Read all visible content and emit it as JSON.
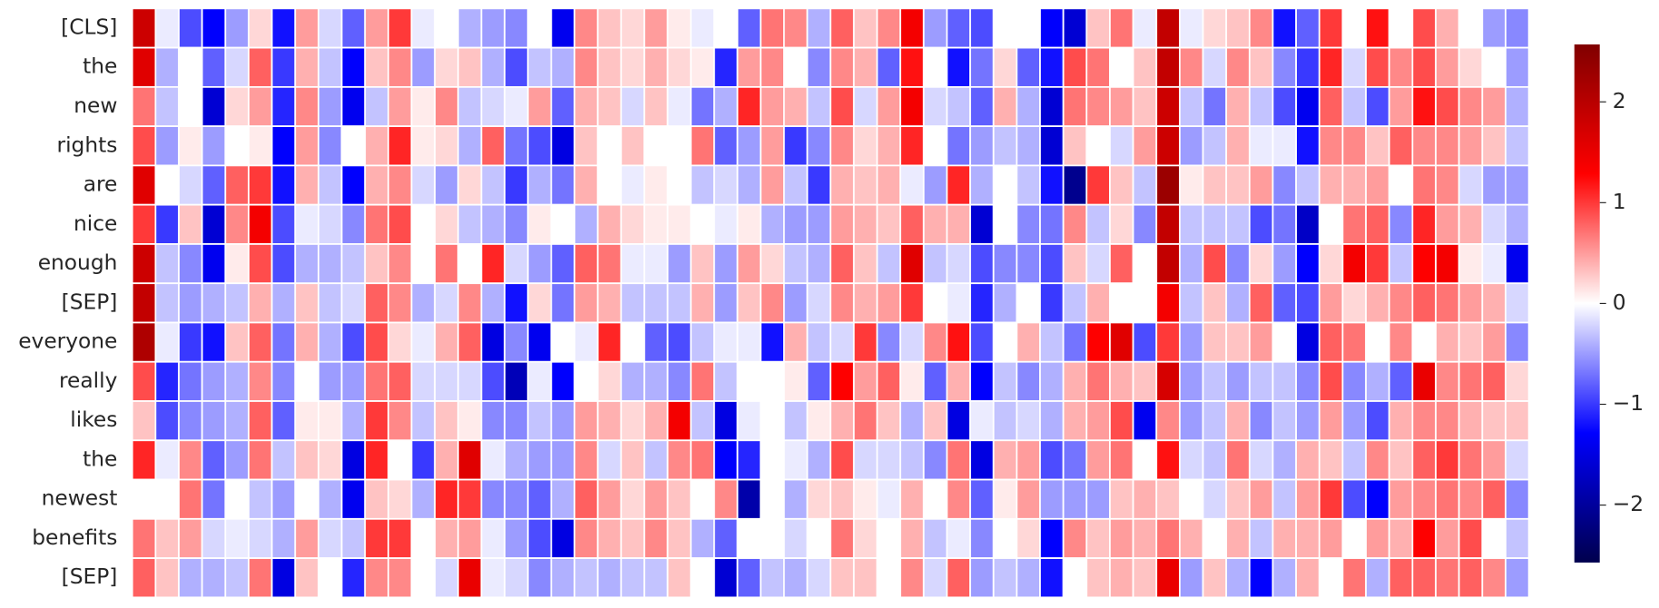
{
  "chart_data": {
    "type": "heatmap",
    "colormap": "seismic",
    "categories": [
      "[CLS]",
      "the",
      "new",
      "rights",
      "are",
      "nice",
      "enough",
      "[SEP]",
      "everyone",
      "really",
      "likes",
      "the",
      "newest",
      "benefits",
      "[SEP]"
    ],
    "values": [
      [
        1.8,
        -0.1,
        -0.9,
        -1.3,
        -0.5,
        0.2,
        -1.2,
        0.5,
        -0.2,
        -0.8,
        0.5,
        1.0,
        -0.1,
        0.0,
        -0.4,
        -0.5,
        -0.6,
        0.0,
        -1.4,
        0.6,
        0.3,
        0.2,
        0.5,
        0.1,
        -0.1,
        0.0,
        -0.8,
        0.7,
        0.6,
        -0.4,
        0.8,
        0.3,
        0.6,
        1.4,
        -0.5,
        -0.8,
        -0.9,
        0.0,
        0.0,
        -1.3,
        -1.6,
        0.3,
        0.7,
        -0.1,
        1.9,
        -0.1,
        0.2,
        0.3,
        0.6,
        -1.2,
        -0.8,
        1.0,
        0.0,
        1.2,
        0.0,
        0.9,
        0.4,
        0.0,
        -0.5,
        -0.6
      ],
      [
        1.6,
        -0.4,
        0.0,
        -0.8,
        -0.2,
        0.8,
        -1.0,
        0.4,
        -0.3,
        -1.3,
        0.3,
        0.6,
        -0.5,
        0.2,
        0.3,
        -0.4,
        -0.9,
        -0.3,
        -0.4,
        0.6,
        0.3,
        0.2,
        0.4,
        0.2,
        0.1,
        -1.1,
        0.5,
        0.6,
        0.0,
        -0.6,
        0.6,
        0.4,
        -0.8,
        1.2,
        0.0,
        -1.2,
        -0.7,
        0.2,
        -0.8,
        -1.2,
        0.9,
        0.7,
        0.0,
        0.3,
        1.9,
        0.6,
        -0.2,
        0.6,
        0.3,
        -0.6,
        -1.0,
        1.1,
        -0.2,
        0.9,
        0.6,
        0.9,
        0.5,
        0.2,
        0.0,
        -0.5
      ],
      [
        0.7,
        -0.3,
        0.0,
        -1.6,
        0.2,
        0.5,
        -1.1,
        0.6,
        -0.5,
        -1.4,
        -0.3,
        0.5,
        0.1,
        0.6,
        -0.3,
        -0.2,
        -0.1,
        0.5,
        -0.8,
        0.4,
        0.3,
        -0.2,
        0.3,
        -0.1,
        -0.7,
        -0.4,
        1.1,
        0.5,
        0.4,
        -0.3,
        0.9,
        -0.2,
        0.5,
        1.4,
        -0.2,
        -0.3,
        -0.8,
        0.4,
        -0.4,
        -1.6,
        0.7,
        0.6,
        0.5,
        0.3,
        1.8,
        -0.3,
        -0.7,
        0.4,
        -0.3,
        -0.9,
        -1.4,
        0.8,
        -0.3,
        -0.9,
        0.5,
        1.2,
        0.9,
        0.6,
        0.5,
        -0.4
      ],
      [
        0.9,
        -0.5,
        0.1,
        -0.5,
        0.0,
        0.1,
        -1.3,
        0.5,
        -0.6,
        0.0,
        0.4,
        1.1,
        0.1,
        0.2,
        -0.4,
        0.8,
        -0.7,
        -0.9,
        -1.5,
        0.3,
        0.0,
        0.3,
        0.0,
        0.0,
        0.7,
        -0.8,
        -0.5,
        0.5,
        -1.0,
        -0.6,
        0.6,
        0.2,
        0.4,
        1.1,
        0.0,
        -0.7,
        -0.5,
        -0.3,
        -0.4,
        -1.6,
        0.3,
        0.0,
        -0.2,
        0.5,
        1.8,
        -0.5,
        -0.3,
        0.4,
        -0.1,
        -0.1,
        -1.2,
        0.6,
        0.6,
        0.3,
        0.8,
        0.6,
        0.6,
        0.5,
        0.3,
        -0.3
      ],
      [
        1.6,
        0.0,
        -0.2,
        -0.8,
        0.8,
        1.0,
        -1.2,
        0.4,
        -0.3,
        -1.3,
        0.4,
        0.6,
        -0.2,
        -0.5,
        0.2,
        -0.3,
        -1.0,
        -0.4,
        -0.7,
        0.4,
        0.0,
        -0.1,
        0.1,
        0.0,
        -0.3,
        -0.2,
        -0.4,
        0.5,
        -0.3,
        -1.0,
        0.4,
        0.3,
        0.4,
        -0.1,
        -0.5,
        1.1,
        -0.4,
        0.0,
        -0.3,
        -1.2,
        -2.1,
        1.0,
        0.3,
        -0.3,
        2.3,
        0.1,
        0.3,
        0.3,
        0.5,
        -0.6,
        -0.3,
        0.4,
        0.4,
        0.5,
        0.0,
        0.7,
        0.6,
        -0.2,
        -0.5,
        -0.5
      ],
      [
        1.0,
        -1.0,
        0.3,
        -1.6,
        0.6,
        1.4,
        -0.9,
        -0.1,
        -0.2,
        -0.6,
        0.7,
        0.9,
        0.0,
        0.2,
        -0.3,
        -0.4,
        -0.6,
        0.1,
        0.0,
        -0.4,
        0.4,
        0.2,
        0.1,
        0.1,
        0.0,
        -0.1,
        0.1,
        -0.4,
        -0.5,
        -0.5,
        0.5,
        0.4,
        0.3,
        0.8,
        0.4,
        0.4,
        -1.6,
        0.0,
        -0.6,
        -0.7,
        0.6,
        -0.3,
        0.2,
        -0.6,
        1.9,
        -0.3,
        -0.3,
        -0.3,
        -0.9,
        -0.7,
        -1.7,
        0.0,
        0.7,
        0.8,
        -0.6,
        1.1,
        0.5,
        0.4,
        -0.2,
        -0.4
      ],
      [
        1.8,
        -0.3,
        -0.6,
        -1.4,
        0.1,
        0.9,
        -0.9,
        -0.4,
        -0.4,
        -0.3,
        0.3,
        0.6,
        0.0,
        0.7,
        0.0,
        1.1,
        -0.2,
        -0.5,
        -0.8,
        0.8,
        0.7,
        -0.1,
        -0.1,
        -0.5,
        0.3,
        -0.5,
        0.5,
        0.2,
        -0.3,
        -0.4,
        0.8,
        0.3,
        -0.3,
        1.6,
        -0.3,
        -0.2,
        -0.9,
        -0.6,
        -0.6,
        -0.9,
        0.3,
        -0.2,
        0.8,
        0.0,
        1.9,
        -0.4,
        0.9,
        -0.6,
        0.2,
        -0.5,
        -1.3,
        0.2,
        1.4,
        1.0,
        -0.3,
        1.3,
        1.4,
        0.1,
        -0.1,
        -1.4
      ],
      [
        1.9,
        -0.3,
        -0.5,
        -0.4,
        -0.3,
        0.4,
        -0.4,
        0.3,
        -0.3,
        -0.2,
        0.8,
        0.6,
        -0.4,
        -0.2,
        0.6,
        -0.4,
        -1.2,
        0.2,
        -0.7,
        0.5,
        0.4,
        -0.3,
        -0.3,
        -0.3,
        0.4,
        -0.5,
        0.3,
        0.6,
        -0.5,
        -0.2,
        0.6,
        0.4,
        0.5,
        1.0,
        0.0,
        -0.1,
        -1.1,
        -0.4,
        0.0,
        -1.0,
        -0.3,
        0.4,
        0.0,
        0.0,
        1.4,
        -0.3,
        0.3,
        -0.4,
        0.8,
        -0.8,
        -0.9,
        0.5,
        0.2,
        0.4,
        0.6,
        0.8,
        0.7,
        0.5,
        0.4,
        -0.2
      ],
      [
        2.1,
        -0.1,
        -1.0,
        -1.2,
        0.3,
        0.8,
        -0.7,
        0.4,
        -0.4,
        -0.9,
        0.9,
        0.2,
        -0.1,
        0.4,
        0.8,
        -1.5,
        -0.6,
        -1.4,
        0.0,
        -0.1,
        1.1,
        0.0,
        -0.8,
        -0.9,
        -0.3,
        -0.1,
        -0.1,
        -1.2,
        0.4,
        -0.3,
        -0.2,
        1.0,
        -0.6,
        -0.2,
        0.6,
        1.2,
        -0.9,
        0.0,
        0.4,
        -0.3,
        -0.7,
        1.3,
        1.6,
        -0.9,
        1.0,
        -0.5,
        0.3,
        0.3,
        0.5,
        0.0,
        -1.5,
        0.8,
        0.7,
        0.0,
        0.6,
        0.0,
        0.4,
        0.3,
        0.5,
        -0.6
      ],
      [
        0.9,
        -1.1,
        -0.7,
        -0.5,
        -0.4,
        0.6,
        -0.6,
        0.0,
        -0.5,
        -0.5,
        0.7,
        0.8,
        -0.2,
        -0.2,
        -0.2,
        -0.9,
        -1.8,
        -0.1,
        -1.3,
        0.0,
        0.2,
        -0.4,
        -0.4,
        -0.6,
        0.7,
        -0.3,
        0.0,
        0.0,
        0.1,
        -0.8,
        1.3,
        0.5,
        0.8,
        0.1,
        -0.8,
        0.4,
        -1.3,
        -0.3,
        -0.6,
        -0.4,
        0.4,
        0.7,
        0.4,
        0.3,
        1.7,
        -0.5,
        -0.3,
        -0.5,
        -0.3,
        -0.3,
        -0.6,
        0.9,
        -0.6,
        -0.4,
        -0.8,
        1.5,
        0.6,
        0.7,
        0.8,
        0.2
      ],
      [
        0.3,
        -0.9,
        -0.6,
        -0.5,
        -0.4,
        0.8,
        -0.8,
        0.1,
        0.1,
        -0.4,
        1.0,
        0.6,
        -0.3,
        0.3,
        0.1,
        -0.6,
        -0.6,
        -0.3,
        -0.5,
        0.5,
        0.4,
        0.2,
        0.4,
        1.4,
        -0.3,
        -1.5,
        -0.1,
        0.0,
        -0.3,
        0.1,
        0.4,
        0.7,
        0.3,
        -0.4,
        0.3,
        -1.5,
        -0.1,
        -0.3,
        -0.2,
        -0.4,
        0.4,
        0.5,
        0.9,
        -1.4,
        0.6,
        -0.5,
        -0.3,
        0.4,
        -0.6,
        -0.3,
        -0.5,
        0.5,
        -0.5,
        -0.9,
        0.4,
        0.6,
        0.6,
        0.4,
        0.3,
        0.3
      ],
      [
        1.1,
        -0.1,
        0.6,
        -0.8,
        -0.5,
        0.7,
        -0.3,
        0.3,
        0.2,
        -1.5,
        1.1,
        0.0,
        -1.0,
        0.4,
        1.6,
        -0.1,
        -0.4,
        -0.5,
        -0.5,
        0.6,
        -0.2,
        0.3,
        -0.3,
        0.6,
        0.7,
        -1.3,
        -1.1,
        0.0,
        -0.1,
        -0.4,
        0.9,
        -0.2,
        -0.2,
        -0.3,
        -0.6,
        0.7,
        -1.5,
        0.4,
        0.5,
        -0.9,
        -0.7,
        0.5,
        0.7,
        0.0,
        1.2,
        -0.2,
        -0.3,
        0.7,
        -0.2,
        -0.4,
        0.4,
        0.3,
        -0.3,
        0.6,
        0.3,
        0.8,
        1.0,
        0.7,
        0.5,
        -0.2
      ],
      [
        0.0,
        0.0,
        0.7,
        -0.7,
        0.0,
        -0.3,
        -0.5,
        0.0,
        -0.4,
        -1.4,
        0.3,
        0.2,
        -0.4,
        1.1,
        1.0,
        -0.6,
        -0.6,
        -0.8,
        -0.4,
        0.8,
        0.5,
        0.2,
        0.5,
        0.3,
        0.0,
        0.6,
        -1.9,
        0.0,
        -0.4,
        0.2,
        0.3,
        0.1,
        -0.1,
        0.4,
        0.0,
        0.6,
        -0.8,
        0.1,
        0.5,
        -0.5,
        -0.5,
        -0.5,
        0.3,
        0.4,
        0.3,
        0.0,
        -0.2,
        0.3,
        0.5,
        -0.3,
        0.5,
        1.0,
        -0.9,
        -1.3,
        0.5,
        0.6,
        0.7,
        0.6,
        0.8,
        -0.6
      ],
      [
        0.7,
        0.3,
        0.5,
        -0.2,
        -0.1,
        -0.2,
        -0.4,
        0.5,
        -0.2,
        -0.3,
        1.0,
        1.0,
        0.0,
        0.4,
        0.5,
        -0.1,
        -0.5,
        -0.9,
        -1.5,
        0.6,
        0.4,
        0.3,
        0.6,
        0.3,
        -0.4,
        -0.8,
        0.0,
        0.0,
        -0.2,
        0.0,
        0.7,
        0.2,
        0.0,
        0.4,
        -0.3,
        -0.1,
        -0.6,
        0.0,
        0.2,
        -1.3,
        0.6,
        0.3,
        0.5,
        0.4,
        0.7,
        0.4,
        0.0,
        0.4,
        -0.3,
        0.4,
        0.4,
        0.5,
        0.0,
        0.5,
        0.4,
        1.3,
        0.5,
        0.9,
        0.0,
        -0.3
      ],
      [
        0.8,
        0.3,
        -0.4,
        -0.4,
        -0.3,
        0.7,
        -1.5,
        0.3,
        0.0,
        -1.1,
        0.6,
        0.6,
        0.0,
        -0.2,
        1.5,
        -0.1,
        -0.2,
        -0.6,
        -0.4,
        -0.3,
        -0.4,
        -0.3,
        -0.3,
        0.3,
        0.0,
        -1.6,
        -0.8,
        -0.3,
        -0.4,
        -0.2,
        0.3,
        0.3,
        0.0,
        0.6,
        -0.2,
        0.8,
        -0.5,
        -0.3,
        -0.4,
        -1.2,
        0.0,
        0.3,
        0.4,
        0.3,
        1.5,
        -0.5,
        0.3,
        -0.4,
        -1.3,
        -0.4,
        0.4,
        0.0,
        0.7,
        -0.4,
        0.8,
        0.8,
        0.7,
        0.8,
        0.6,
        -0.5
      ]
    ],
    "clim": [
      -2.57,
      2.57
    ],
    "cbar_ticks": [
      {
        "value": -2,
        "label": "−2"
      },
      {
        "value": -1,
        "label": "−1"
      },
      0,
      1,
      2
    ]
  }
}
